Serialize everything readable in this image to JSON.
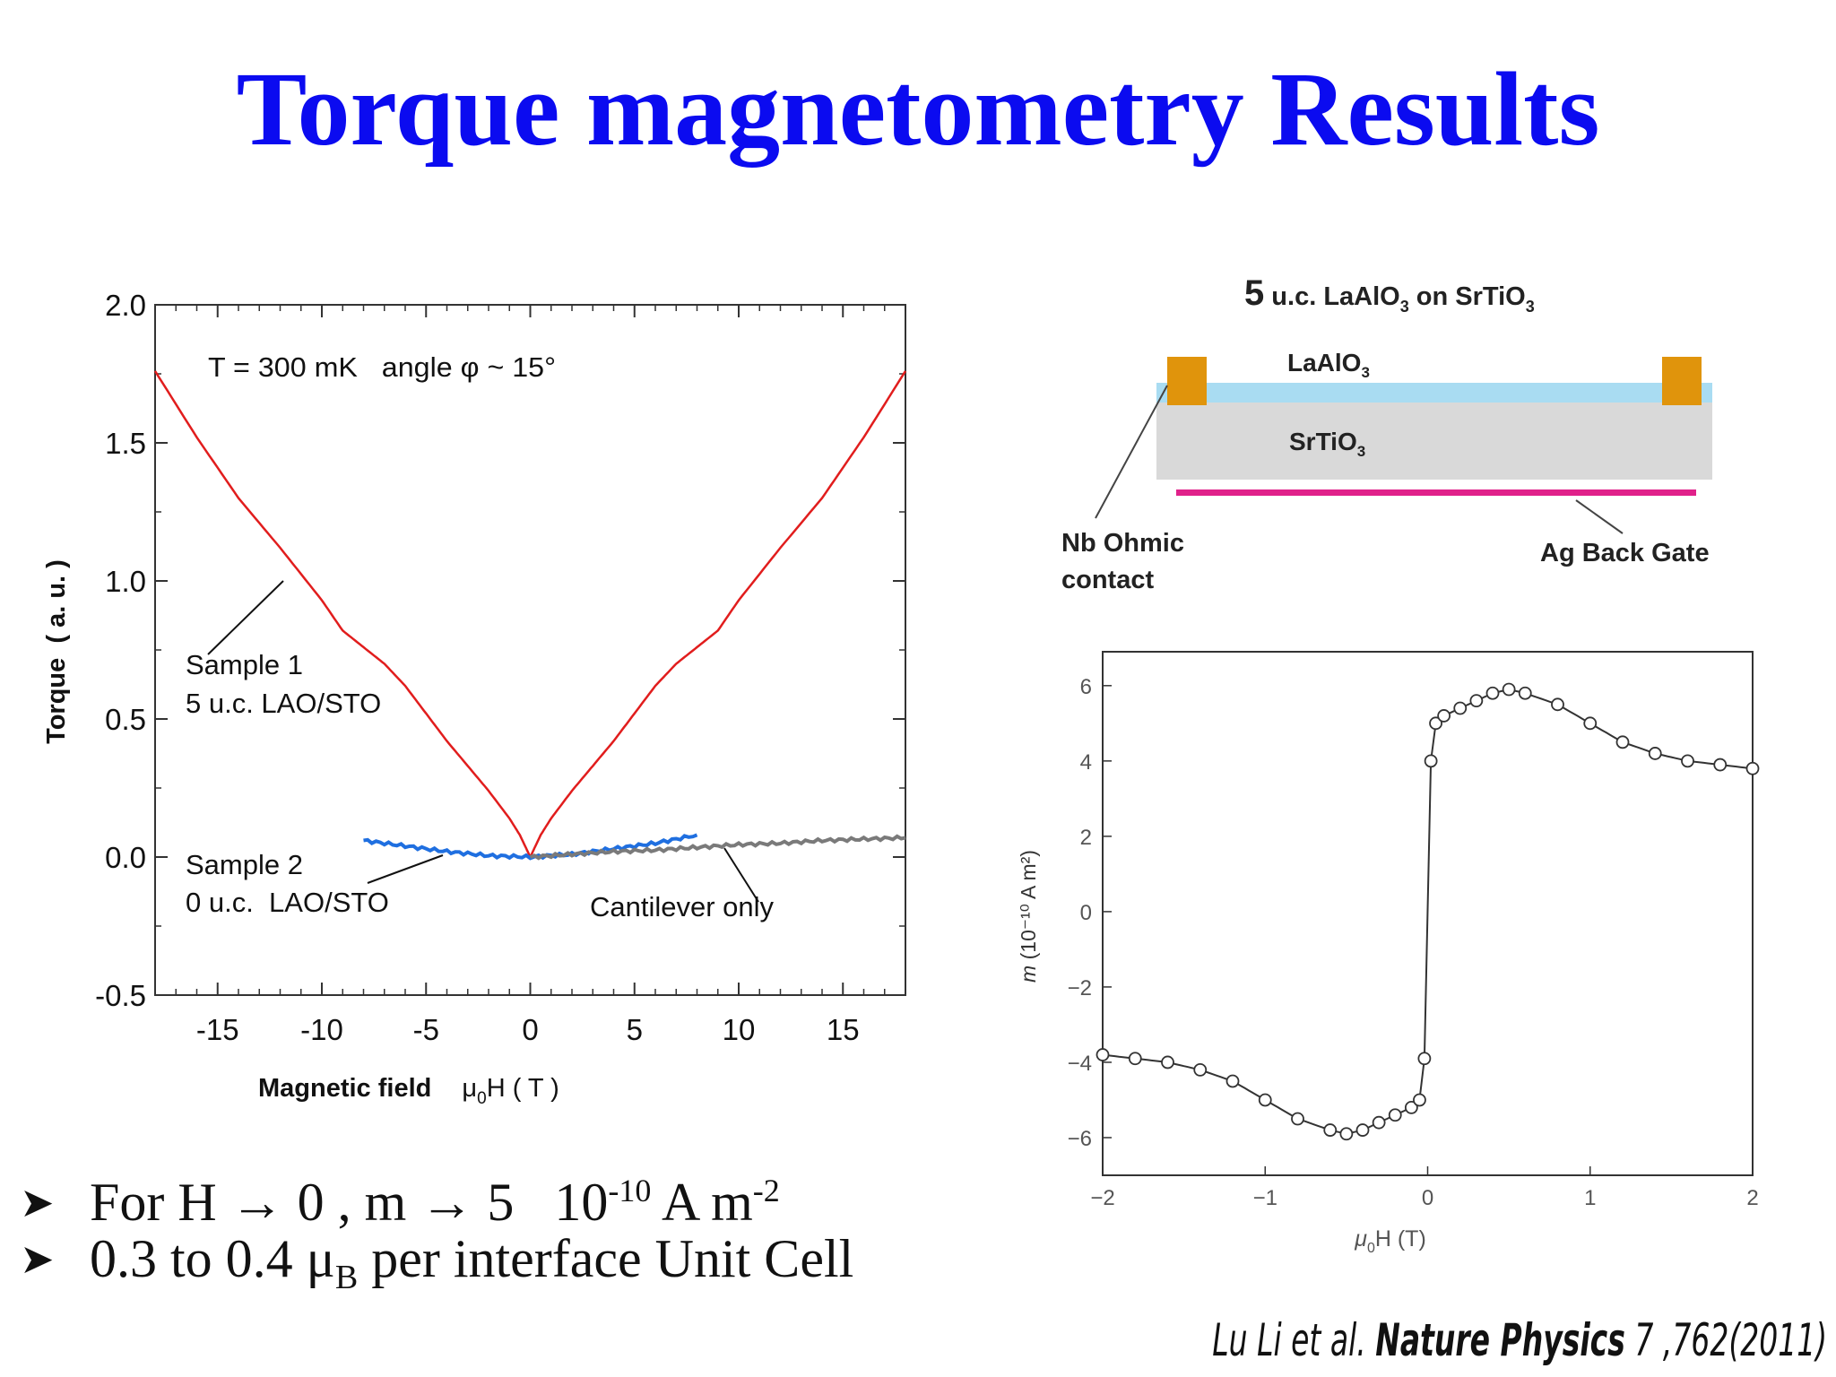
{
  "title": "Torque magnetometry Results",
  "bullets": [
    {
      "prefix": "For H → 0 , m → 5   10",
      "sup": "-10",
      "mid": " A m",
      "sup2": "-2"
    },
    {
      "prefix": "0.3 to 0.4 μ",
      "sub": "B",
      "mid": " per interface Unit Cell"
    }
  ],
  "citation": {
    "authors": "Lu Li et al.",
    "journal": "Nature Physics",
    "ref": "7 ,762(2011)"
  },
  "diagram": {
    "title_num": "5",
    "title_rest": " u.c. LaAlO",
    "title_sub": "3",
    "title_on": " on SrTiO",
    "title_sub2": "3",
    "layer_top": "LaAlO",
    "layer_top_sub": "3",
    "layer_bottom": "SrTiO",
    "layer_bottom_sub": "3",
    "label_contact_1": "Nb Ohmic",
    "label_contact_2": "contact",
    "label_gate": "Ag Back Gate",
    "colors": {
      "lao": "#a9dcf2",
      "sto": "#d9d9d9",
      "contact": "#e0940c",
      "gate": "#e0218a"
    }
  },
  "chart_data": [
    {
      "type": "line",
      "xlim": [
        -18,
        18
      ],
      "ylim": [
        -0.5,
        2.0
      ],
      "x_ticks": [
        -15,
        -10,
        -5,
        0,
        5,
        10,
        15
      ],
      "y_ticks": [
        -0.5,
        0.0,
        0.5,
        1.0,
        1.5,
        2.0
      ],
      "x_tick_labels": [
        "-15",
        "-10",
        "-5",
        "0",
        "5",
        "10",
        "15"
      ],
      "y_tick_labels": [
        "-0.5",
        "0.0",
        "0.5",
        "1.0",
        "1.5",
        "2.0"
      ],
      "xlabel": "Magnetic field",
      "xlabel_sym": "μ",
      "xlabel_sub": "0",
      "xlabel_unit": "H ( T )",
      "ylabel": "Torque  ( a. u. )",
      "annotation": "T = 300 mK   angle φ ~ 15°",
      "series": [
        {
          "label_lines": [
            "Sample 1",
            "5 u.c. LAO/STO"
          ],
          "color": "#e11d1d",
          "x": [
            -18,
            -16,
            -14,
            -12,
            -10,
            -9,
            -8,
            -7,
            -6,
            -5,
            -4,
            -3,
            -2,
            -1,
            -0.5,
            0,
            0.5,
            1,
            2,
            3,
            4,
            5,
            6,
            7,
            8,
            9,
            10,
            12,
            14,
            16,
            18
          ],
          "y": [
            1.76,
            1.52,
            1.3,
            1.12,
            0.93,
            0.82,
            0.76,
            0.7,
            0.62,
            0.52,
            0.42,
            0.33,
            0.24,
            0.14,
            0.08,
            0.0,
            0.08,
            0.14,
            0.24,
            0.33,
            0.42,
            0.52,
            0.62,
            0.7,
            0.76,
            0.82,
            0.93,
            1.12,
            1.3,
            1.52,
            1.76
          ]
        },
        {
          "label_lines": [
            "Sample 2",
            "0 u.c.  LAO/STO"
          ],
          "color": "#1f6fe0",
          "x": [
            -8,
            -6,
            -4,
            -2,
            0,
            2,
            4,
            6,
            8
          ],
          "y": [
            0.06,
            0.04,
            0.02,
            0.005,
            0.0,
            0.01,
            0.03,
            0.05,
            0.08
          ]
        },
        {
          "label_lines": [
            "Cantilever only"
          ],
          "color": "#7a7a7a",
          "x": [
            0,
            2,
            4,
            6,
            8,
            10,
            12,
            14,
            16,
            18
          ],
          "y": [
            0.0,
            0.01,
            0.02,
            0.025,
            0.035,
            0.045,
            0.05,
            0.06,
            0.065,
            0.07
          ]
        }
      ]
    },
    {
      "type": "scatter",
      "xlim": [
        -2,
        2
      ],
      "ylim": [
        -7,
        6.9
      ],
      "x_ticks": [
        -2,
        -1,
        0,
        1,
        2
      ],
      "y_ticks": [
        -6,
        -4,
        -2,
        0,
        2,
        4,
        6
      ],
      "x_tick_labels": [
        "−2",
        "−1",
        "0",
        "1",
        "2"
      ],
      "y_tick_labels": [
        "−6",
        "−4",
        "−2",
        "0",
        "2",
        "4",
        "6"
      ],
      "xlabel_sym": "μ",
      "xlabel_sub": "0",
      "xlabel_unit": "H (T)",
      "ylabel_m": "m",
      "ylabel_rest": " (10⁻¹⁰ A m²)",
      "series": [
        {
          "marker": "open-circle",
          "color": "#333333",
          "x": [
            -2,
            -1.8,
            -1.6,
            -1.4,
            -1.2,
            -1.0,
            -0.8,
            -0.6,
            -0.5,
            -0.4,
            -0.3,
            -0.2,
            -0.1,
            -0.05,
            -0.02,
            0.02,
            0.05,
            0.1,
            0.2,
            0.3,
            0.4,
            0.5,
            0.6,
            0.8,
            1.0,
            1.2,
            1.4,
            1.6,
            1.8,
            2.0
          ],
          "y": [
            -3.8,
            -3.9,
            -4.0,
            -4.2,
            -4.5,
            -5.0,
            -5.5,
            -5.8,
            -5.9,
            -5.8,
            -5.6,
            -5.4,
            -5.2,
            -5.0,
            -3.9,
            4.0,
            5.0,
            5.2,
            5.4,
            5.6,
            5.8,
            5.9,
            5.8,
            5.5,
            5.0,
            4.5,
            4.2,
            4.0,
            3.9,
            3.8
          ]
        }
      ]
    }
  ]
}
